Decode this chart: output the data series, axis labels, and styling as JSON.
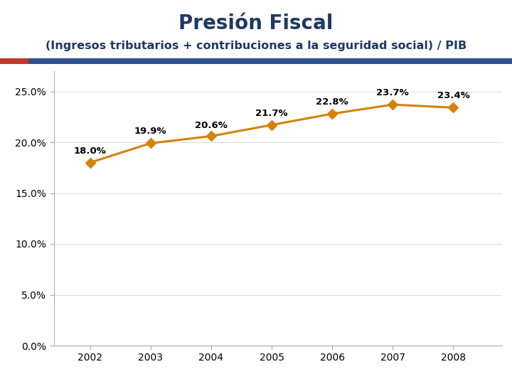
{
  "title": "Presión Fiscal",
  "subtitle": "(Ingresos tributarios + contribuciones a la seguridad social) / PIB",
  "years": [
    2002,
    2003,
    2004,
    2005,
    2006,
    2007,
    2008
  ],
  "values": [
    0.18,
    0.199,
    0.206,
    0.217,
    0.228,
    0.237,
    0.234
  ],
  "labels": [
    "18.0%",
    "19.9%",
    "20.6%",
    "21.7%",
    "22.8%",
    "23.7%",
    "23.4%"
  ],
  "line_color": "#D4820A",
  "marker_color": "#D4820A",
  "title_color": "#1F3864",
  "subtitle_color": "#1F3864",
  "bar_left_color": "#C0392B",
  "bar_right_color": "#2E5090",
  "ylim": [
    0.0,
    0.27
  ],
  "yticks": [
    0.0,
    0.05,
    0.1,
    0.15,
    0.2,
    0.25
  ],
  "bg_color": "#FFFFFF",
  "annotation_fontsize": 9.5,
  "title_fontsize": 20,
  "subtitle_fontsize": 11.5,
  "tick_fontsize": 10,
  "label_offsets_y": [
    0.007,
    0.007,
    0.006,
    0.007,
    0.007,
    0.007,
    0.007
  ]
}
